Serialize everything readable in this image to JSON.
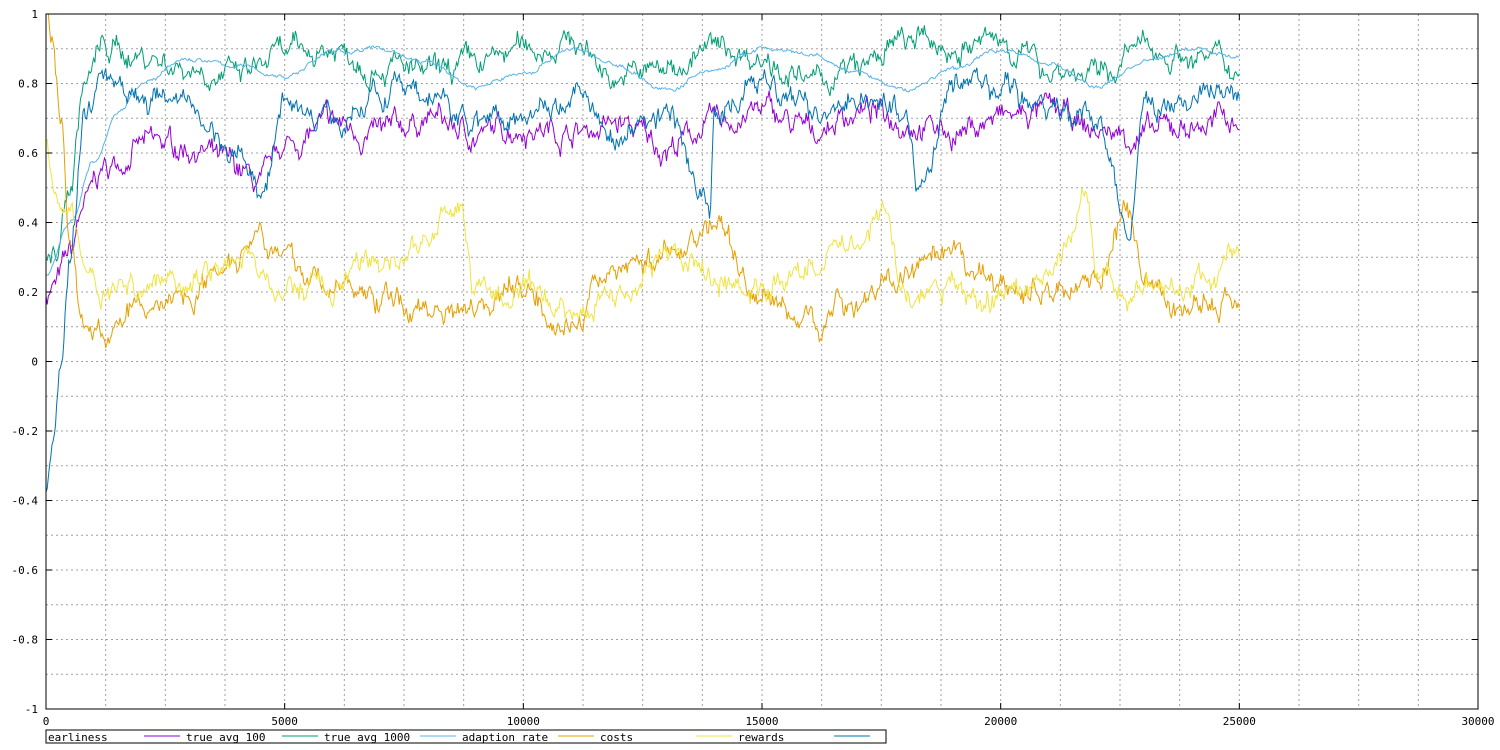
{
  "chart_data": {
    "type": "line",
    "title": "",
    "xlabel": "",
    "ylabel": "",
    "xlim": [
      0,
      30000
    ],
    "ylim": [
      -1,
      1
    ],
    "x_ticks": [
      0,
      5000,
      10000,
      15000,
      20000,
      25000,
      30000
    ],
    "x_tick_labels": [
      "0",
      "5000",
      "10000",
      "15000",
      "20000",
      "25000",
      "30000"
    ],
    "y_ticks": [
      -1,
      -0.8,
      -0.6,
      -0.4,
      -0.2,
      0,
      0.2,
      0.4,
      0.6,
      0.8,
      1
    ],
    "y_tick_labels": [
      "-1",
      "-0.8",
      "-0.6",
      "-0.4",
      "-0.2",
      "0",
      "0.2",
      "0.4",
      "0.6",
      "0.8",
      "1"
    ],
    "grid": true,
    "legend_position": "bottom",
    "series": [
      {
        "name": "earliness",
        "color": "#9400d3",
        "x": [
          0,
          200,
          500,
          800,
          1200,
          2000,
          3000,
          4000,
          4500,
          5000,
          6000,
          7000,
          8000,
          9000,
          10000,
          11000,
          12000,
          13000,
          14000,
          15000,
          16000,
          17000,
          18000,
          19000,
          20000,
          21000,
          22000,
          23000,
          24000,
          25000
        ],
        "y": [
          0.2,
          0.22,
          0.3,
          0.45,
          0.55,
          0.62,
          0.62,
          0.55,
          0.5,
          0.62,
          0.68,
          0.65,
          0.7,
          0.65,
          0.68,
          0.66,
          0.68,
          0.62,
          0.68,
          0.72,
          0.66,
          0.72,
          0.7,
          0.66,
          0.7,
          0.72,
          0.66,
          0.65,
          0.68,
          0.7
        ]
      },
      {
        "name": "true avg 100",
        "color": "#009e73",
        "x": [
          0,
          200,
          500,
          800,
          1200,
          2000,
          3000,
          4000,
          5000,
          6000,
          7000,
          8000,
          9000,
          10000,
          11000,
          12000,
          13000,
          14000,
          15000,
          16000,
          17000,
          18000,
          19000,
          20000,
          21000,
          22000,
          23000,
          24000,
          25000
        ],
        "y": [
          0.28,
          0.3,
          0.5,
          0.8,
          0.9,
          0.88,
          0.85,
          0.82,
          0.88,
          0.9,
          0.86,
          0.82,
          0.85,
          0.9,
          0.92,
          0.82,
          0.84,
          0.9,
          0.88,
          0.8,
          0.84,
          0.92,
          0.9,
          0.92,
          0.85,
          0.82,
          0.9,
          0.88,
          0.85
        ]
      },
      {
        "name": "true avg 1000",
        "color": "#56b4e9",
        "x": [
          0,
          500,
          1000,
          1500,
          2000,
          3000,
          4000,
          5000,
          6000,
          7000,
          8000,
          9000,
          10000,
          11000,
          12000,
          13000,
          14000,
          15000,
          16000,
          17000,
          18000,
          19000,
          20000,
          21000,
          22000,
          23000,
          24000,
          25000
        ],
        "y": [
          0.25,
          0.4,
          0.58,
          0.72,
          0.8,
          0.87,
          0.85,
          0.82,
          0.89,
          0.9,
          0.86,
          0.79,
          0.83,
          0.9,
          0.85,
          0.78,
          0.84,
          0.9,
          0.88,
          0.83,
          0.78,
          0.84,
          0.9,
          0.86,
          0.79,
          0.86,
          0.9,
          0.88
        ]
      },
      {
        "name": "adaption rate",
        "color": "#e69f00",
        "x": [
          0,
          150,
          300,
          500,
          800,
          1200,
          2000,
          3000,
          4000,
          4500,
          5000,
          6000,
          7000,
          8000,
          9000,
          10000,
          11000,
          12000,
          13000,
          14000,
          15000,
          16000,
          17000,
          18000,
          19000,
          20000,
          21000,
          22000,
          22700,
          23000,
          24000,
          25000
        ],
        "y": [
          1.0,
          0.9,
          0.7,
          0.35,
          0.1,
          0.08,
          0.15,
          0.2,
          0.32,
          0.4,
          0.28,
          0.22,
          0.18,
          0.15,
          0.18,
          0.22,
          0.1,
          0.28,
          0.3,
          0.4,
          0.18,
          0.12,
          0.18,
          0.25,
          0.28,
          0.22,
          0.2,
          0.25,
          0.42,
          0.2,
          0.15,
          0.17
        ]
      },
      {
        "name": "costs",
        "color": "#f0e442",
        "x": [
          0,
          150,
          300,
          500,
          800,
          1200,
          2000,
          3000,
          4000,
          5000,
          6000,
          7000,
          8000,
          8700,
          9000,
          10000,
          11000,
          12000,
          13000,
          14000,
          15000,
          16000,
          17000,
          17500,
          18000,
          19000,
          20000,
          21000,
          21800,
          22000,
          23000,
          24000,
          25000
        ],
        "y": [
          0.65,
          0.55,
          0.5,
          0.45,
          0.28,
          0.2,
          0.22,
          0.25,
          0.3,
          0.2,
          0.22,
          0.28,
          0.35,
          0.45,
          0.2,
          0.18,
          0.15,
          0.2,
          0.3,
          0.25,
          0.2,
          0.28,
          0.35,
          0.45,
          0.18,
          0.2,
          0.18,
          0.25,
          0.45,
          0.25,
          0.2,
          0.22,
          0.3
        ]
      },
      {
        "name": "rewards",
        "color": "#0072b2",
        "x": [
          0,
          150,
          300,
          500,
          800,
          1200,
          2000,
          3000,
          4000,
          4500,
          5000,
          6000,
          7000,
          8000,
          9000,
          10000,
          11000,
          12000,
          13000,
          13900,
          14000,
          15000,
          16000,
          17000,
          18000,
          18300,
          19000,
          20000,
          21000,
          22000,
          22700,
          23000,
          24000,
          25000
        ],
        "y": [
          -0.35,
          -0.25,
          -0.05,
          0.3,
          0.7,
          0.85,
          0.78,
          0.72,
          0.6,
          0.5,
          0.75,
          0.7,
          0.78,
          0.75,
          0.7,
          0.72,
          0.78,
          0.65,
          0.72,
          0.45,
          0.7,
          0.8,
          0.72,
          0.78,
          0.7,
          0.5,
          0.8,
          0.78,
          0.72,
          0.7,
          0.38,
          0.72,
          0.75,
          0.78
        ]
      }
    ]
  }
}
